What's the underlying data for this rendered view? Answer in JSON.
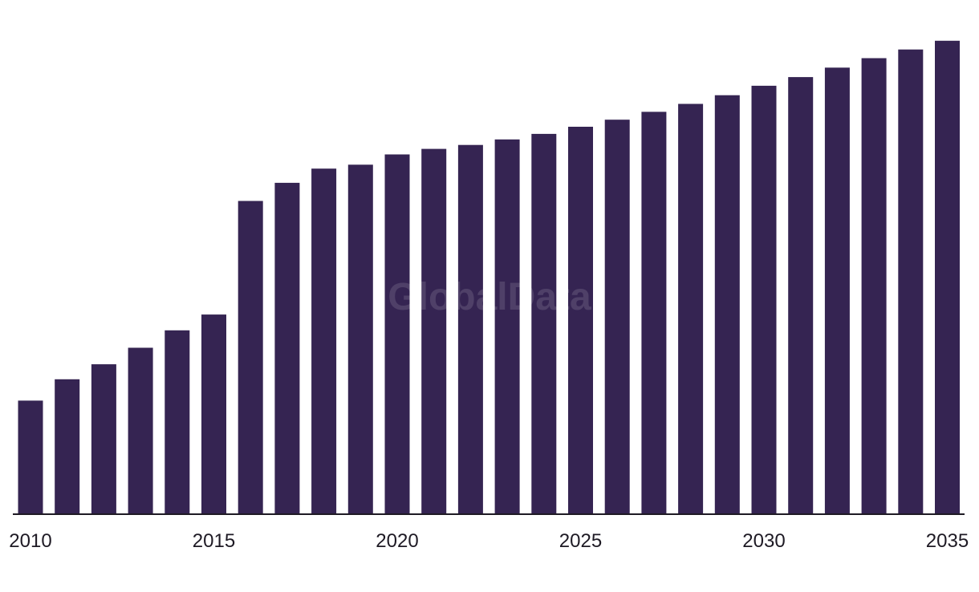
{
  "watermark": "GlobalData",
  "colors": {
    "bar": "#352452",
    "axis": "#1e1a24",
    "background": "#ffffff"
  },
  "chart_data": {
    "type": "bar",
    "title": "",
    "xlabel": "",
    "ylabel": "",
    "grid": false,
    "legend": "none",
    "categories": [
      "2010",
      "2011",
      "2012",
      "2013",
      "2014",
      "2015",
      "2016",
      "2017",
      "2018",
      "2019",
      "2020",
      "2021",
      "2022",
      "2023",
      "2024",
      "2025",
      "2026",
      "2027",
      "2028",
      "2029",
      "2030",
      "2031",
      "2032",
      "2033",
      "2034",
      "2035"
    ],
    "values": [
      144,
      171,
      190,
      211,
      233,
      253,
      397,
      420,
      438,
      443,
      456,
      463,
      468,
      475,
      482,
      491,
      500,
      510,
      520,
      531,
      543,
      554,
      566,
      578,
      589,
      600
    ],
    "ylim": [
      0,
      610
    ],
    "tick_labels": [
      "2010",
      "2015",
      "2020",
      "2025",
      "2030",
      "2035"
    ]
  }
}
